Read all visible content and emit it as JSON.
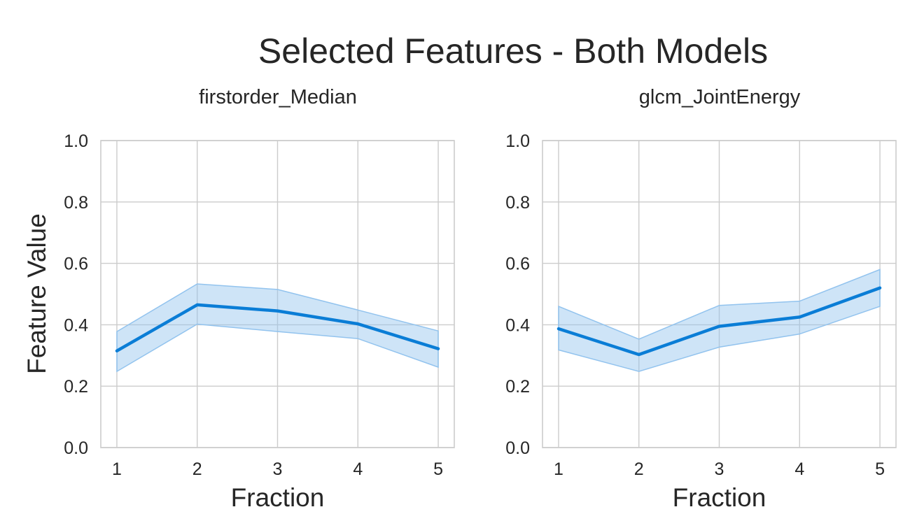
{
  "figure": {
    "title": "Selected Features - Both Models",
    "ylabel": "Feature Value",
    "colors": {
      "line": "#0a7dd6",
      "band": "#92c3ee",
      "grid": "#cccccc"
    }
  },
  "chart_data": [
    {
      "type": "line",
      "title": "firstorder_Median",
      "xlabel": "Fraction",
      "ylabel": "Feature Value",
      "x": [
        1,
        2,
        3,
        4,
        5
      ],
      "xticks": [
        "1",
        "2",
        "3",
        "4",
        "5"
      ],
      "yticks": [
        "0.0",
        "0.2",
        "0.4",
        "0.6",
        "0.8",
        "1.0"
      ],
      "xlim": [
        0.8,
        5.2
      ],
      "ylim": [
        0.0,
        1.0
      ],
      "grid": true,
      "series": [
        {
          "values": [
            0.315,
            0.465,
            0.445,
            0.403,
            0.322
          ],
          "lower": [
            0.248,
            0.402,
            0.378,
            0.355,
            0.262
          ],
          "upper": [
            0.378,
            0.533,
            0.515,
            0.448,
            0.38
          ]
        }
      ]
    },
    {
      "type": "line",
      "title": "glcm_JointEnergy",
      "xlabel": "Fraction",
      "ylabel": "",
      "x": [
        1,
        2,
        3,
        4,
        5
      ],
      "xticks": [
        "1",
        "2",
        "3",
        "4",
        "5"
      ],
      "yticks": [
        "0.0",
        "0.2",
        "0.4",
        "0.6",
        "0.8",
        "1.0"
      ],
      "xlim": [
        0.8,
        5.2
      ],
      "ylim": [
        0.0,
        1.0
      ],
      "grid": true,
      "series": [
        {
          "values": [
            0.387,
            0.303,
            0.395,
            0.425,
            0.52
          ],
          "lower": [
            0.318,
            0.248,
            0.327,
            0.37,
            0.46
          ],
          "upper": [
            0.46,
            0.353,
            0.463,
            0.477,
            0.58
          ]
        }
      ]
    }
  ]
}
